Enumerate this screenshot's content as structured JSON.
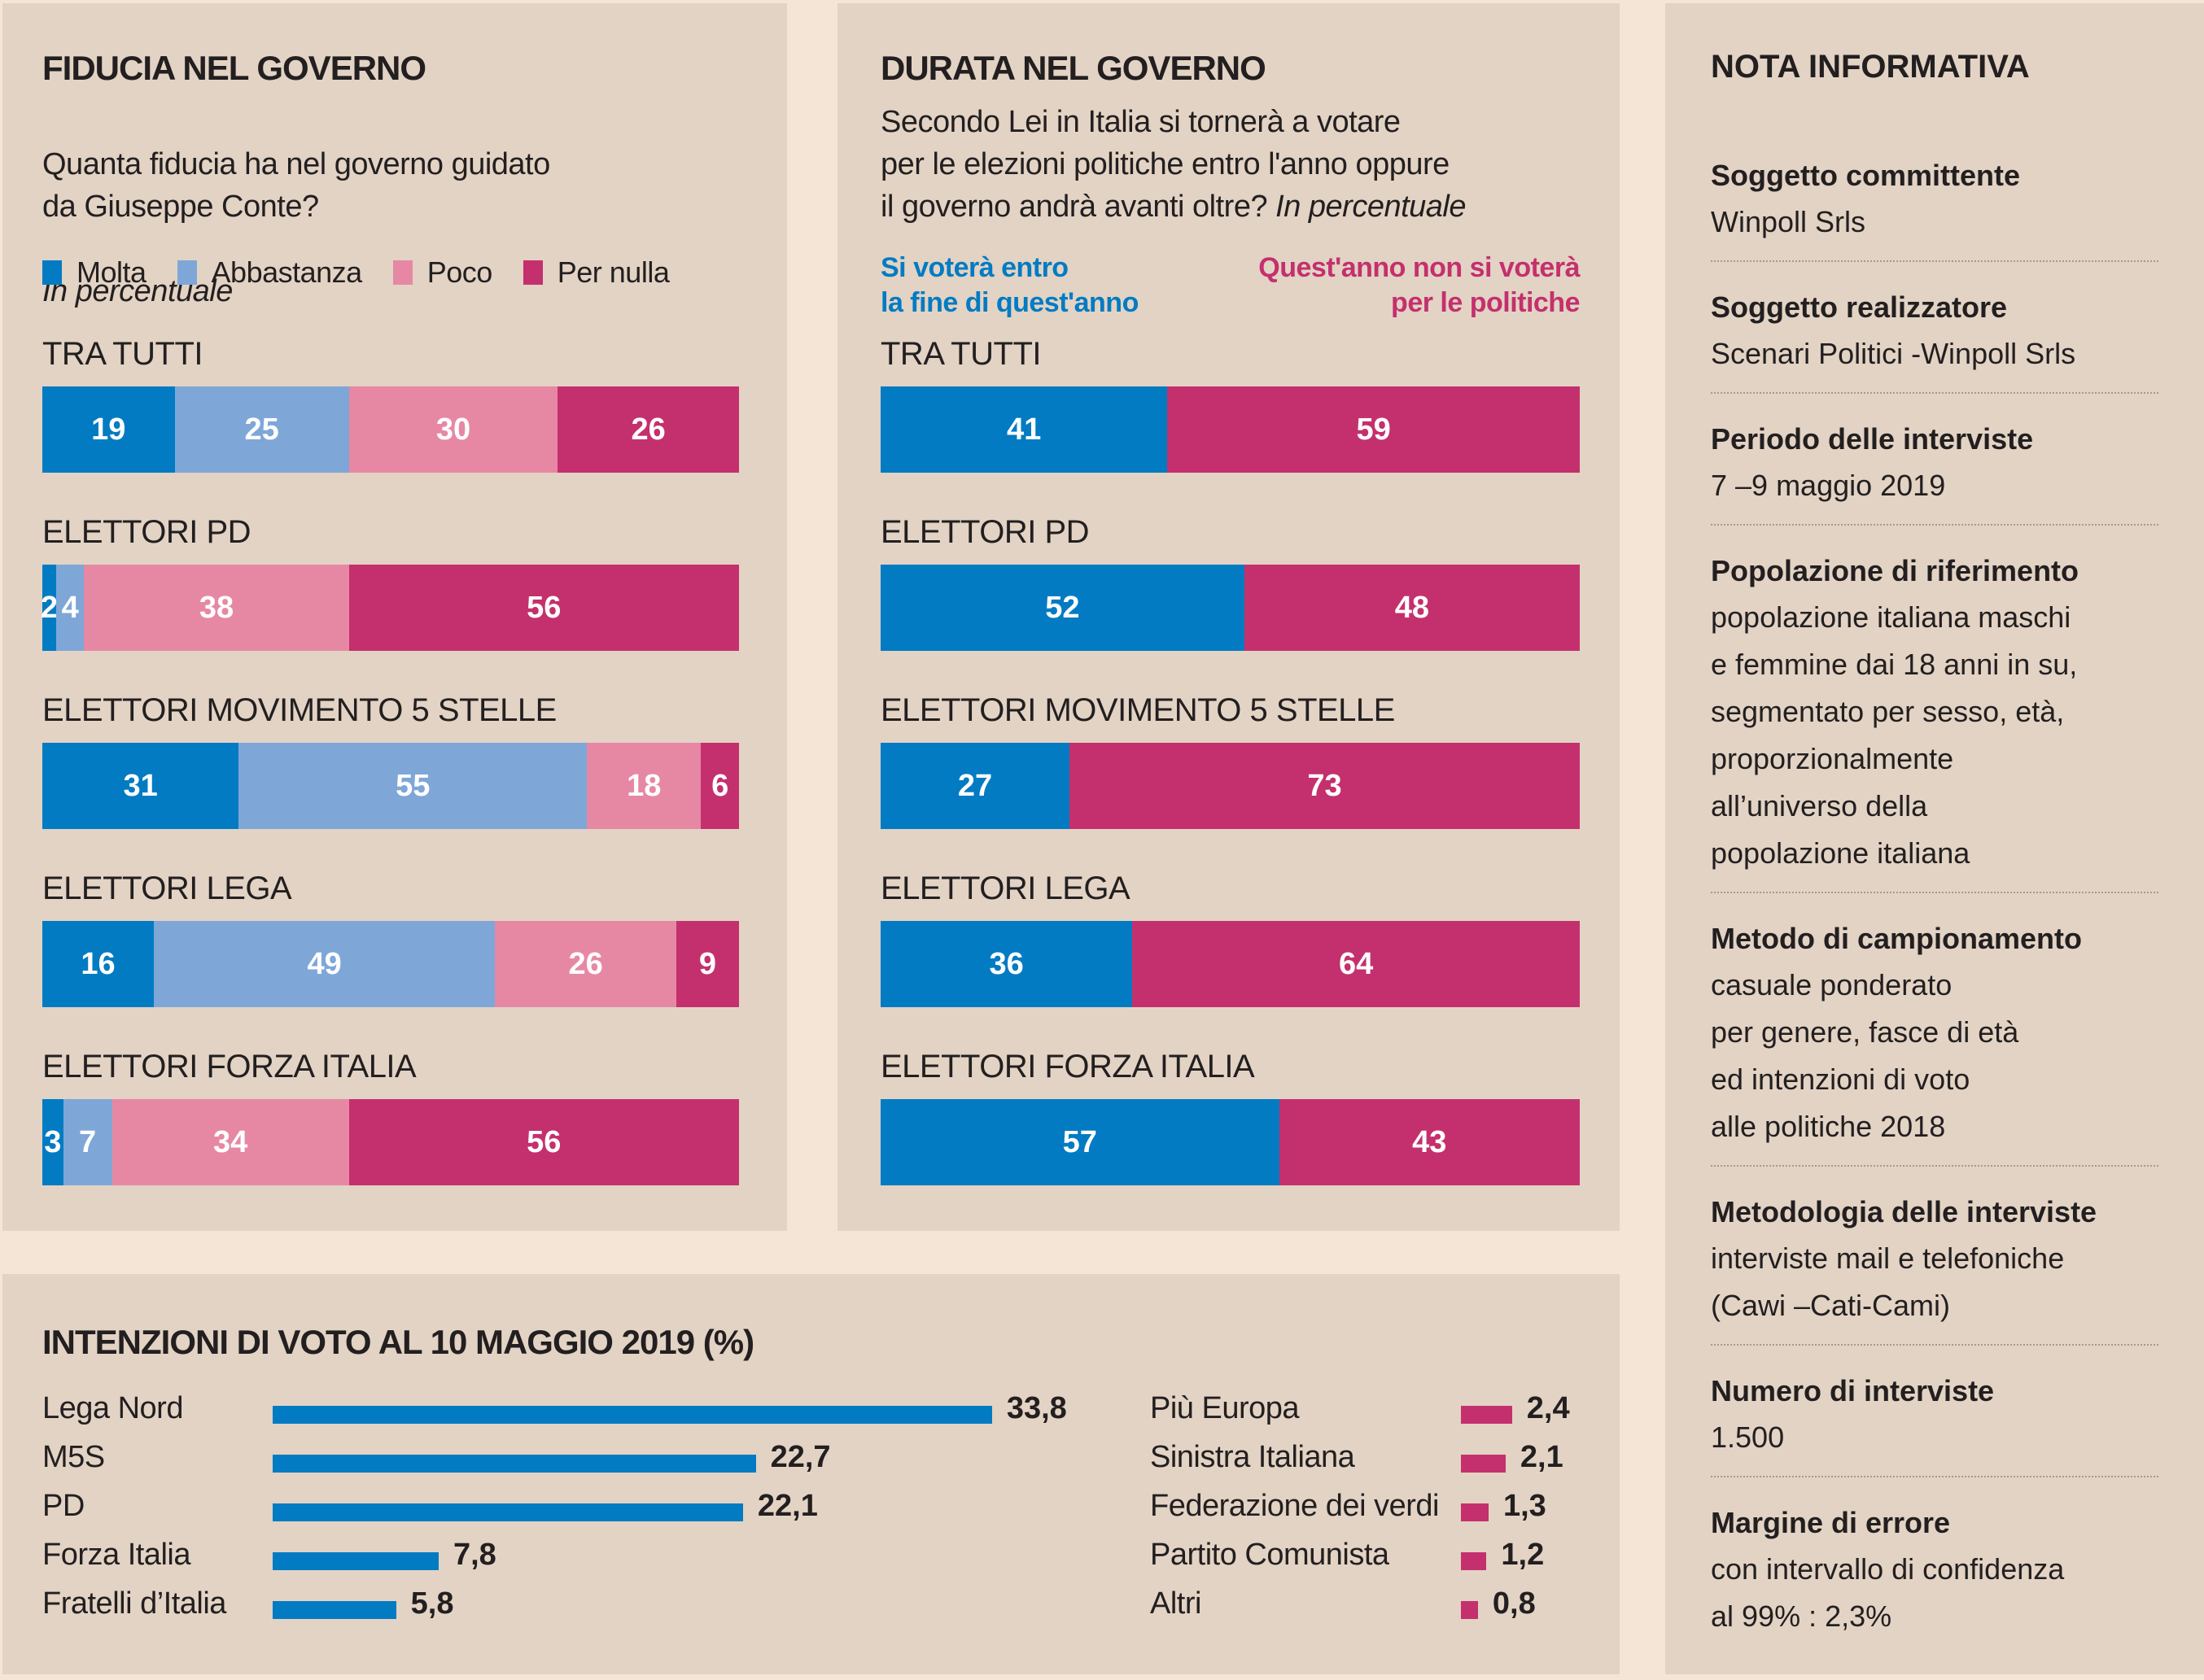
{
  "colors": {
    "molta": "#027bc3",
    "abbastanza": "#7ea7d8",
    "poco": "#e688a4",
    "per_nulla": "#c4306d",
    "blue_text": "#027bc3",
    "magenta_text": "#c4306d"
  },
  "fiducia": {
    "title": "FIDUCIA NEL GOVERNO",
    "subtitle": "Quanta fiducia ha nel governo guidato\nda Giuseppe Conte?",
    "unit_note": "In percentuale",
    "legend": [
      "Molta",
      "Abbastanza",
      "Poco",
      "Per nulla"
    ]
  },
  "durata": {
    "title": "DURATA NEL GOVERNO",
    "subtitle": "Secondo Lei in Italia si tornerà a votare\nper le elezioni politiche entro l'anno oppure\nil governo andrà avanti oltre? ",
    "unit_note": "In percentuale",
    "legend_left": "Si voterà entro\nla fine di quest'anno",
    "legend_right": "Quest'anno non si voterà\nper le politiche"
  },
  "nota": {
    "title": "NOTA INFORMATIVA",
    "items": [
      {
        "heading": "Soggetto committente",
        "value": "Winpoll Srls"
      },
      {
        "heading": "Soggetto realizzatore",
        "value": "Scenari Politici -Winpoll Srls"
      },
      {
        "heading": "Periodo delle interviste",
        "value": "7 –9 maggio 2019"
      },
      {
        "heading": "Popolazione di riferimento",
        "value": "popolazione italiana maschi\ne femmine dai 18 anni in su,\nsegmentato per sesso, età,\nproporzionalmente\nall’universo della\npopolazione italiana"
      },
      {
        "heading": "Metodo di campionamento",
        "value": "casuale ponderato\nper genere, fasce di età\ned intenzioni di voto\nalle politiche 2018"
      },
      {
        "heading": "Metodologia delle interviste",
        "value": "interviste mail e telefoniche\n(Cawi –Cati-Cami)"
      },
      {
        "heading": "Numero di interviste",
        "value": "1.500"
      },
      {
        "heading": "Margine di errore",
        "value": "con intervallo di confidenza\nal 99% : 2,3%"
      }
    ]
  },
  "voto": {
    "title": "INTENZIONI DI VOTO AL 10 MAGGIO 2019 (%)"
  },
  "chart_data": [
    {
      "type": "bar",
      "stacked": true,
      "orientation": "horizontal",
      "title": "FIDUCIA NEL GOVERNO",
      "subtitle": "Quanta fiducia ha nel governo guidato da Giuseppe Conte? In percentuale",
      "categories": [
        "TRA TUTTI",
        "ELETTORI PD",
        "ELETTORI MOVIMENTO 5 STELLE",
        "ELETTORI LEGA",
        "ELETTORI FORZA ITALIA"
      ],
      "series": [
        {
          "name": "Molta",
          "values": [
            19,
            2,
            31,
            16,
            3
          ]
        },
        {
          "name": "Abbastanza",
          "values": [
            25,
            4,
            55,
            49,
            7
          ]
        },
        {
          "name": "Poco",
          "values": [
            30,
            38,
            18,
            26,
            34
          ]
        },
        {
          "name": "Per nulla",
          "values": [
            26,
            56,
            6,
            9,
            56
          ]
        }
      ],
      "legend": "top-left",
      "grid": false
    },
    {
      "type": "bar",
      "stacked": true,
      "orientation": "horizontal",
      "title": "DURATA NEL GOVERNO",
      "subtitle": "Secondo Lei in Italia si tornerà a votare per le elezioni politiche entro l'anno oppure il governo andrà avanti oltre? In percentuale",
      "categories": [
        "TRA TUTTI",
        "ELETTORI PD",
        "ELETTORI MOVIMENTO 5 STELLE",
        "ELETTORI LEGA",
        "ELETTORI FORZA ITALIA"
      ],
      "series": [
        {
          "name": "Si voterà entro la fine di quest'anno",
          "values": [
            41,
            52,
            27,
            36,
            57
          ]
        },
        {
          "name": "Quest'anno non si voterà per le politiche",
          "values": [
            59,
            48,
            73,
            64,
            43
          ]
        }
      ],
      "legend": "top",
      "grid": false
    },
    {
      "type": "bar",
      "orientation": "horizontal",
      "title": "INTENZIONI DI VOTO AL 10 MAGGIO 2019 (%)",
      "groups": [
        {
          "color": "#027bc3",
          "categories": [
            "Lega Nord",
            "M5S",
            "PD",
            "Forza Italia",
            "Fratelli d’Italia"
          ],
          "values": [
            33.8,
            22.7,
            22.1,
            7.8,
            5.8
          ],
          "labels": [
            "33,8",
            "22,7",
            "22,1",
            "7,8",
            "5,8"
          ]
        },
        {
          "color": "#c4306d",
          "categories": [
            "Più Europa",
            "Sinistra Italiana",
            "Federazione dei verdi",
            "Partito Comunista",
            "Altri"
          ],
          "values": [
            2.4,
            2.1,
            1.3,
            1.2,
            0.8
          ],
          "labels": [
            "2,4",
            "2,1",
            "1,3",
            "1,2",
            "0,8"
          ]
        }
      ],
      "grid": false
    }
  ]
}
